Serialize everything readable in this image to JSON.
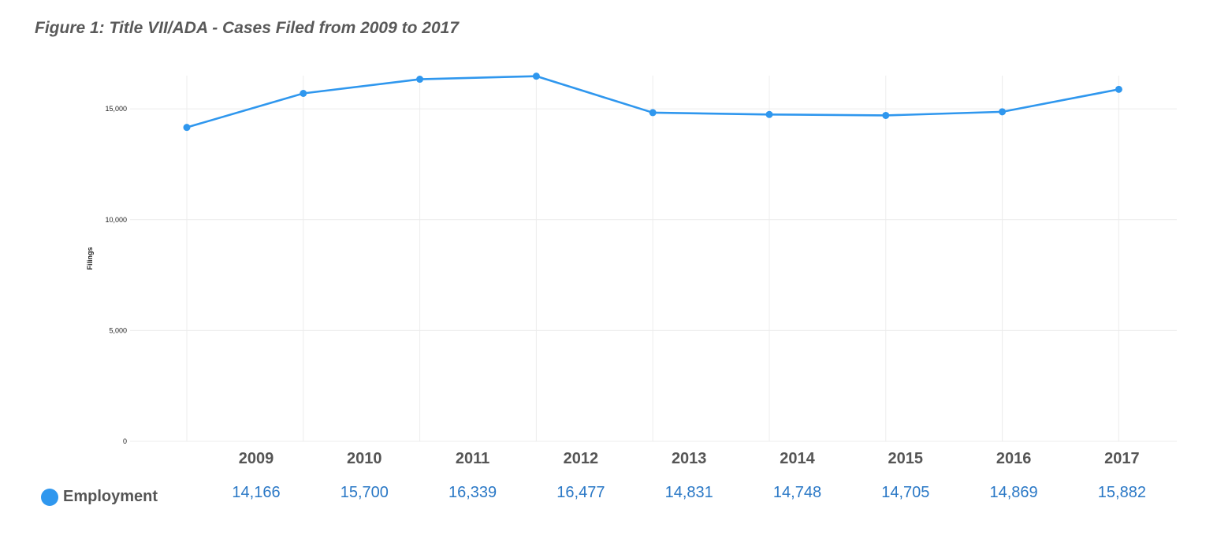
{
  "title": "Figure 1: Title VII/ADA - Cases Filed from 2009 to 2017",
  "chart_data": {
    "type": "line",
    "title": "Figure 1: Title VII/ADA - Cases Filed from 2009 to 2017",
    "ylabel": "Filings",
    "xlabel": "",
    "categories": [
      "2009",
      "2010",
      "2011",
      "2012",
      "2013",
      "2014",
      "2015",
      "2016",
      "2017"
    ],
    "series": [
      {
        "name": "Employment",
        "values": [
          14166,
          15700,
          16339,
          16477,
          14831,
          14748,
          14705,
          14869,
          15882
        ],
        "color": "#2f97ee"
      }
    ],
    "ylim": [
      0,
      16500
    ],
    "yticks": [
      0,
      5000,
      10000,
      15000
    ],
    "ytick_labels": [
      "0",
      "5,000",
      "10,000",
      "15,000"
    ],
    "grid": true,
    "legend_position": "bottom-left"
  },
  "table": {
    "years": [
      "2009",
      "2010",
      "2011",
      "2012",
      "2013",
      "2014",
      "2015",
      "2016",
      "2017"
    ],
    "series_label": "Employment",
    "values": [
      "14,166",
      "15,700",
      "16,339",
      "16,477",
      "14,831",
      "14,748",
      "14,705",
      "14,869",
      "15,882"
    ],
    "color": "#2f97ee"
  }
}
